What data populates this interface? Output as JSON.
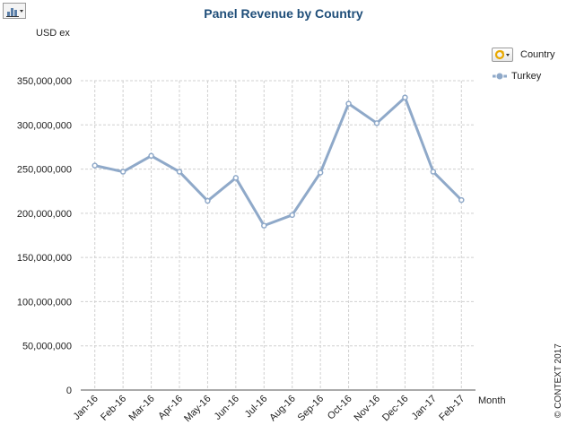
{
  "toolbar": {
    "chart_type_icon": "bar-chart-icon"
  },
  "legend": {
    "title": "Country",
    "toggle_icon": "cycle-dropdown-icon",
    "items": [
      {
        "label": "Turkey",
        "color": "#8fa9c9"
      }
    ]
  },
  "copyright": "© CONTEXT 2017",
  "colors": {
    "series": "#8fa9c9",
    "grid": "#d0d0d0",
    "title": "#1f4e79"
  },
  "chart_data": {
    "type": "line",
    "title": "Panel Revenue by Country",
    "ylabel": "USD ex",
    "xlabel": "Month",
    "ylim": [
      0,
      350000000
    ],
    "yticks": [
      0,
      50000000,
      100000000,
      150000000,
      200000000,
      250000000,
      300000000,
      350000000
    ],
    "ytick_labels": [
      "0",
      "50,000,000",
      "100,000,000",
      "150,000,000",
      "200,000,000",
      "250,000,000",
      "300,000,000",
      "350,000,000"
    ],
    "grid": true,
    "legend_position": "top-right",
    "categories": [
      "Jan-16",
      "Feb-16",
      "Mar-16",
      "Apr-16",
      "May-16",
      "Jun-16",
      "Jul-16",
      "Aug-16",
      "Sep-16",
      "Oct-16",
      "Nov-16",
      "Dec-16",
      "Jan-17",
      "Feb-17"
    ],
    "series": [
      {
        "name": "Turkey",
        "values": [
          254000000,
          247000000,
          265000000,
          247000000,
          214000000,
          240000000,
          186000000,
          198000000,
          246000000,
          324000000,
          302000000,
          331000000,
          247000000,
          215000000
        ]
      }
    ]
  }
}
